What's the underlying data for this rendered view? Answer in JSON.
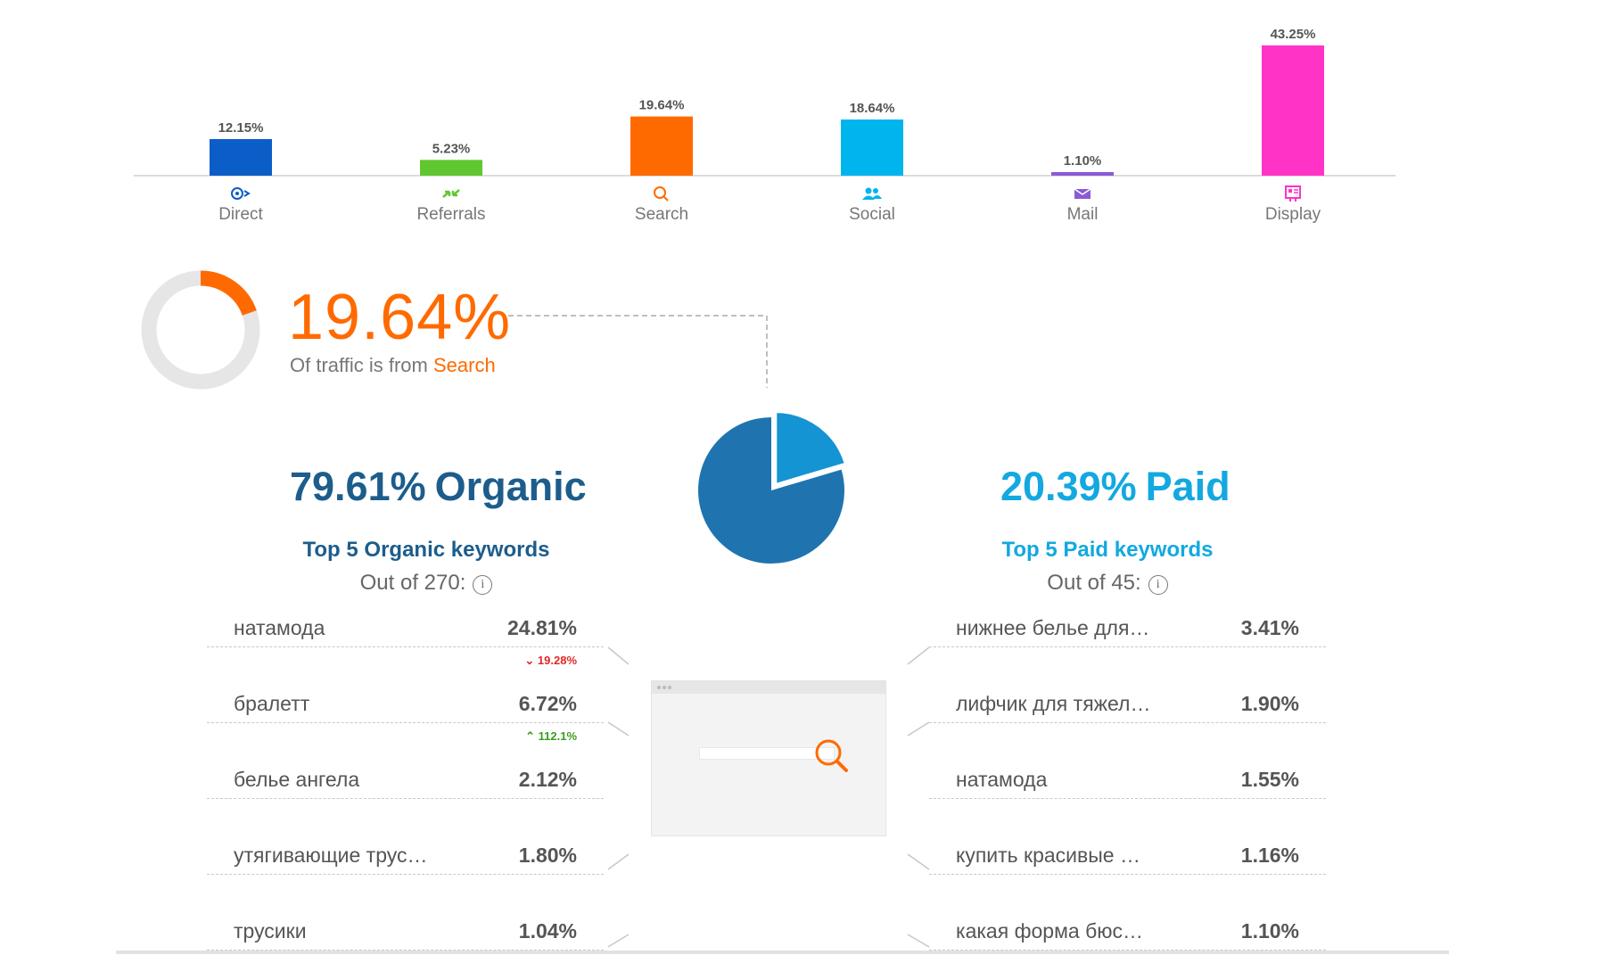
{
  "channels": {
    "ylim": [
      0,
      45
    ],
    "items": [
      {
        "name": "Direct",
        "value": 12.15,
        "value_label": "12.15%",
        "color": "#0b5ec7",
        "icon": "direct-icon"
      },
      {
        "name": "Referrals",
        "value": 5.23,
        "value_label": "5.23%",
        "color": "#61c730",
        "icon": "referrals-icon"
      },
      {
        "name": "Search",
        "value": 19.64,
        "value_label": "19.64%",
        "color": "#ff6a00",
        "icon": "search-icon"
      },
      {
        "name": "Social",
        "value": 18.64,
        "value_label": "18.64%",
        "color": "#00b4ee",
        "icon": "social-icon"
      },
      {
        "name": "Mail",
        "value": 1.1,
        "value_label": "1.10%",
        "color": "#8b5ad6",
        "icon": "mail-icon"
      },
      {
        "name": "Display",
        "value": 43.25,
        "value_label": "43.25%",
        "color": "#ff33c6",
        "icon": "display-icon"
      }
    ]
  },
  "search_share": {
    "value_label": "19.64%",
    "value": 19.64,
    "caption_prefix": "Of traffic is from",
    "caption_highlight": "Search",
    "color": "#ff6a00"
  },
  "split": {
    "organic": {
      "value": 79.61,
      "pct_label": "79.61%",
      "label": "Organic",
      "color": "#1f74b0"
    },
    "paid": {
      "value": 20.39,
      "pct_label": "20.39%",
      "label": "Paid",
      "color": "#1494d2"
    }
  },
  "organic_keywords": {
    "heading": "Top 5 Organic keywords",
    "out_of": "Out of 270:",
    "rows": [
      {
        "keyword": "натамода",
        "share": "24.81%",
        "change": "19.28%",
        "direction": "down"
      },
      {
        "keyword": "бралетт",
        "share": "6.72%",
        "change": "112.1%",
        "direction": "up"
      },
      {
        "keyword": "белье ангела",
        "share": "2.12%"
      },
      {
        "keyword": "утягивающие трус…",
        "share": "1.80%"
      },
      {
        "keyword": "трусики",
        "share": "1.04%"
      }
    ]
  },
  "paid_keywords": {
    "heading": "Top 5 Paid keywords",
    "out_of": "Out of 45:",
    "rows": [
      {
        "keyword": "нижнее белье для…",
        "share": "3.41%"
      },
      {
        "keyword": "лифчик для тяжел…",
        "share": "1.90%"
      },
      {
        "keyword": "натамода",
        "share": "1.55%"
      },
      {
        "keyword": "купить красивые …",
        "share": "1.16%"
      },
      {
        "keyword": "какая форма бюс…",
        "share": "1.10%"
      }
    ]
  },
  "info_icon": "info-icon"
}
